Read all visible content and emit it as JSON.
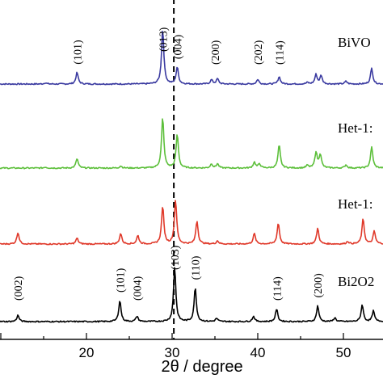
{
  "chart_data": {
    "type": "line",
    "xlabel": "2θ / degree",
    "ylabel": "",
    "xlim": [
      10,
      58
    ],
    "x_ticks": [
      20,
      30,
      40,
      50
    ],
    "reference_line_x": 30.2,
    "series": [
      {
        "name": "BiVO",
        "color": "#3a3aa0",
        "peaks": [
          [
            15.2,
            0.06
          ],
          [
            18.9,
            0.55
          ],
          [
            28.9,
            2.6
          ],
          [
            30.6,
            0.8
          ],
          [
            34.6,
            0.2
          ],
          [
            35.3,
            0.25
          ],
          [
            40.0,
            0.22
          ],
          [
            42.5,
            0.35
          ],
          [
            45.8,
            0.07
          ],
          [
            46.8,
            0.45
          ],
          [
            47.4,
            0.4
          ],
          [
            50.3,
            0.13
          ],
          [
            53.3,
            0.75
          ]
        ],
        "peak_labels": [
          {
            "text": "(101)",
            "x": 18.9
          },
          {
            "text": "(013)",
            "x": 28.9
          },
          {
            "text": "(004)",
            "x": 30.6
          },
          {
            "text": "(200)",
            "x": 35.0
          },
          {
            "text": "(202)",
            "x": 40.0
          },
          {
            "text": "(114)",
            "x": 42.5
          }
        ]
      },
      {
        "name": "Het-1:",
        "color": "#5cbf3a",
        "peaks": [
          [
            15.2,
            0.05
          ],
          [
            18.9,
            0.45
          ],
          [
            24.0,
            0.1
          ],
          [
            28.9,
            2.4
          ],
          [
            30.6,
            1.6
          ],
          [
            34.6,
            0.2
          ],
          [
            35.3,
            0.2
          ],
          [
            39.6,
            0.28
          ],
          [
            40.2,
            0.2
          ],
          [
            42.5,
            1.1
          ],
          [
            45.8,
            0.12
          ],
          [
            46.8,
            0.75
          ],
          [
            47.3,
            0.65
          ],
          [
            50.3,
            0.15
          ],
          [
            53.3,
            1.0
          ]
        ],
        "peak_labels": []
      },
      {
        "name": "Het-1:",
        "color": "#e0392a",
        "peaks": [
          [
            12.0,
            0.55
          ],
          [
            18.9,
            0.28
          ],
          [
            24.0,
            0.5
          ],
          [
            26.0,
            0.4
          ],
          [
            28.9,
            1.8
          ],
          [
            30.4,
            2.1
          ],
          [
            32.9,
            1.1
          ],
          [
            35.3,
            0.15
          ],
          [
            39.6,
            0.5
          ],
          [
            42.4,
            1.0
          ],
          [
            47.0,
            0.75
          ],
          [
            50.5,
            0.12
          ],
          [
            52.3,
            1.2
          ],
          [
            53.6,
            0.6
          ],
          [
            55.5,
            0.3
          ]
        ],
        "peak_labels": []
      },
      {
        "name": "Bi2O2",
        "color": "#000000",
        "peaks": [
          [
            12.0,
            0.3
          ],
          [
            23.9,
            1.0
          ],
          [
            25.9,
            0.25
          ],
          [
            30.3,
            2.6
          ],
          [
            32.7,
            1.6
          ],
          [
            35.2,
            0.15
          ],
          [
            39.5,
            0.25
          ],
          [
            42.2,
            0.6
          ],
          [
            47.0,
            0.75
          ],
          [
            49.0,
            0.18
          ],
          [
            52.2,
            0.8
          ],
          [
            53.5,
            0.5
          ],
          [
            55.3,
            0.3
          ]
        ],
        "peak_labels": [
          {
            "text": "(002)",
            "x": 12.0
          },
          {
            "text": "(101)",
            "x": 23.9
          },
          {
            "text": "(004)",
            "x": 25.9
          },
          {
            "text": "(103)",
            "x": 30.3
          },
          {
            "text": "(110)",
            "x": 32.7
          },
          {
            "text": "(114)",
            "x": 42.2
          },
          {
            "text": "(200)",
            "x": 47.0
          }
        ]
      }
    ]
  }
}
